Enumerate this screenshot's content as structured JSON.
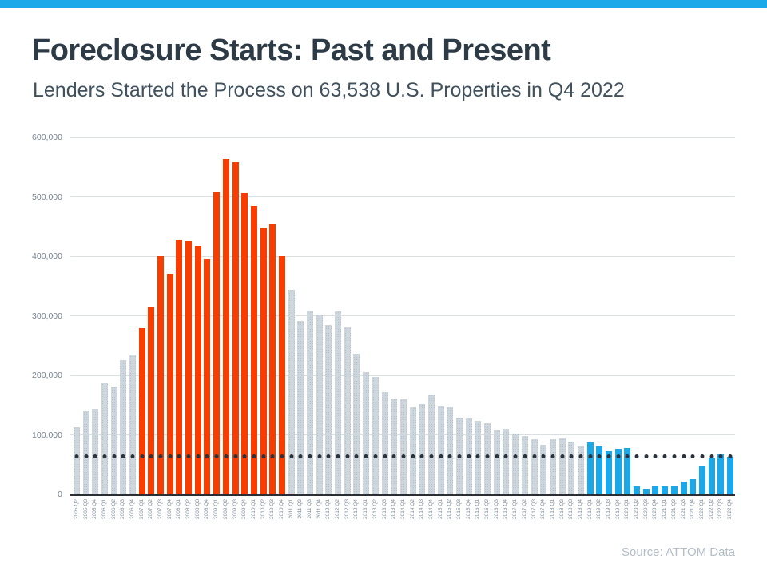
{
  "banner": {
    "color": "#1BA9EA"
  },
  "header": {
    "title": "Foreclosure Starts: Past and Present",
    "subtitle": "Lenders Started the Process on 63,538 U.S. Properties in Q4 2022"
  },
  "source": {
    "label": "Source: ATTOM Data"
  },
  "chart_data": {
    "type": "bar",
    "title": "Foreclosure Starts: Past and Present",
    "xlabel": "",
    "ylabel": "",
    "ylim": [
      0,
      600000
    ],
    "ytick_step": 100000,
    "y_tick_labels": [
      "600,000",
      "500,000",
      "400,000",
      "300,000",
      "200,000",
      "100,000",
      "0"
    ],
    "grid": true,
    "legend": "none",
    "reference_line": {
      "style": "dotted",
      "value": 63538,
      "color": "#2A333E",
      "note": "Q4 2022 level"
    },
    "palette": {
      "neutral": "#CDD6DC",
      "crash": "#F93D00",
      "recent": "#1BA8E8"
    },
    "categories": [
      "2005 Q2",
      "2005 Q3",
      "2005 Q4",
      "2006 Q1",
      "2006 Q2",
      "2006 Q3",
      "2006 Q4",
      "2007 Q1",
      "2007 Q2",
      "2007 Q3",
      "2007 Q4",
      "2008 Q1",
      "2008 Q2",
      "2008 Q3",
      "2008 Q4",
      "2009 Q1",
      "2009 Q2",
      "2009 Q3",
      "2009 Q4",
      "2010 Q1",
      "2010 Q2",
      "2010 Q3",
      "2010 Q4",
      "2011 Q1",
      "2011 Q2",
      "2011 Q3",
      "2011 Q4",
      "2012 Q1",
      "2012 Q2",
      "2012 Q3",
      "2012 Q4",
      "2013 Q1",
      "2013 Q2",
      "2013 Q3",
      "2013 Q4",
      "2014 Q1",
      "2014 Q2",
      "2014 Q3",
      "2014 Q4",
      "2015 Q1",
      "2015 Q2",
      "2015 Q3",
      "2015 Q4",
      "2016 Q1",
      "2016 Q2",
      "2016 Q3",
      "2016 Q4",
      "2017 Q1",
      "2017 Q2",
      "2017 Q3",
      "2017 Q4",
      "2018 Q1",
      "2018 Q2",
      "2018 Q3",
      "2018 Q4",
      "2019 Q1",
      "2019 Q2",
      "2019 Q3",
      "2019 Q4",
      "2020 Q1",
      "2020 Q2",
      "2020 Q3",
      "2020 Q4",
      "2021 Q1",
      "2021 Q2",
      "2021 Q3",
      "2021 Q4",
      "2022 Q1",
      "2022 Q2",
      "2022 Q3",
      "2022 Q4"
    ],
    "values": [
      113000,
      139000,
      144000,
      186000,
      181000,
      226000,
      233000,
      279000,
      316000,
      402000,
      370000,
      428000,
      426000,
      417000,
      396000,
      509000,
      564000,
      558000,
      506000,
      485000,
      449000,
      455000,
      402000,
      344000,
      291000,
      307000,
      302000,
      284000,
      308000,
      281000,
      236000,
      206000,
      198000,
      172000,
      161000,
      160000,
      147000,
      152000,
      168000,
      148000,
      147000,
      129000,
      127000,
      124000,
      120000,
      107000,
      110000,
      102000,
      98000,
      92000,
      83000,
      92000,
      94000,
      89000,
      81000,
      87000,
      81000,
      73000,
      77000,
      78000,
      13000,
      10000,
      13000,
      13000,
      15000,
      22000,
      25000,
      47000,
      62000,
      67000,
      63538
    ],
    "groups": [
      "neutral",
      "neutral",
      "neutral",
      "neutral",
      "neutral",
      "neutral",
      "neutral",
      "crash",
      "crash",
      "crash",
      "crash",
      "crash",
      "crash",
      "crash",
      "crash",
      "crash",
      "crash",
      "crash",
      "crash",
      "crash",
      "crash",
      "crash",
      "crash",
      "neutral",
      "neutral",
      "neutral",
      "neutral",
      "neutral",
      "neutral",
      "neutral",
      "neutral",
      "neutral",
      "neutral",
      "neutral",
      "neutral",
      "neutral",
      "neutral",
      "neutral",
      "neutral",
      "neutral",
      "neutral",
      "neutral",
      "neutral",
      "neutral",
      "neutral",
      "neutral",
      "neutral",
      "neutral",
      "neutral",
      "neutral",
      "neutral",
      "neutral",
      "neutral",
      "neutral",
      "neutral",
      "recent",
      "recent",
      "recent",
      "recent",
      "recent",
      "recent",
      "recent",
      "recent",
      "recent",
      "recent",
      "recent",
      "recent",
      "recent",
      "recent",
      "recent",
      "recent"
    ]
  }
}
